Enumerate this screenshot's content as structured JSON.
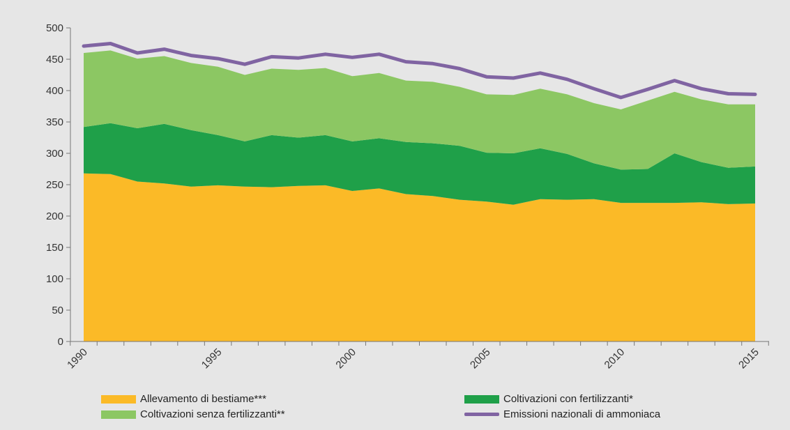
{
  "chart_data": {
    "type": "area",
    "x": [
      1990,
      1991,
      1992,
      1993,
      1994,
      1995,
      1996,
      1997,
      1998,
      1999,
      2000,
      2001,
      2002,
      2003,
      2004,
      2005,
      2006,
      2007,
      2008,
      2009,
      2010,
      2011,
      2012,
      2013,
      2014,
      2015
    ],
    "x_tick_labels": [
      "1990",
      "1995",
      "2000",
      "2005",
      "2010",
      "2015"
    ],
    "y_ticks": [
      0,
      50,
      100,
      150,
      200,
      250,
      300,
      350,
      400,
      450,
      500
    ],
    "ylim": [
      0,
      500
    ],
    "stacked": true,
    "series": [
      {
        "name": "Allevamento di bestiame***",
        "color": "#fbba27",
        "values": [
          268,
          267,
          255,
          252,
          247,
          249,
          247,
          246,
          248,
          249,
          240,
          244,
          235,
          232,
          226,
          223,
          218,
          227,
          226,
          227,
          221,
          221,
          221,
          222,
          219,
          220
        ]
      },
      {
        "name": "Coltivazioni con fertilizzanti*",
        "color": "#1fa049",
        "values": [
          74,
          81,
          85,
          95,
          90,
          80,
          72,
          83,
          77,
          80,
          79,
          80,
          83,
          84,
          86,
          78,
          82,
          81,
          73,
          57,
          53,
          54,
          79,
          64,
          58,
          59
        ]
      },
      {
        "name": "Coltivazioni senza fertilizzanti**",
        "color": "#8cc763",
        "values": [
          118,
          116,
          111,
          108,
          107,
          109,
          106,
          106,
          108,
          107,
          104,
          104,
          98,
          98,
          94,
          93,
          93,
          95,
          95,
          96,
          96,
          109,
          98,
          100,
          101,
          99
        ]
      }
    ],
    "line_series": {
      "name": "Emissioni nazionali di ammoniaca",
      "color": "#8064a2",
      "values": [
        471,
        475,
        460,
        466,
        456,
        451,
        442,
        454,
        452,
        458,
        453,
        458,
        446,
        443,
        435,
        422,
        420,
        428,
        418,
        403,
        389,
        402,
        416,
        403,
        395,
        394
      ]
    },
    "grid": false,
    "legend_position": "bottom"
  }
}
